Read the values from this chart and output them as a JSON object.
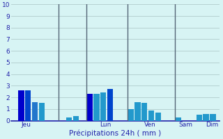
{
  "title": "Précipitations 24h ( mm )",
  "ylim": [
    0,
    10
  ],
  "yticks": [
    0,
    1,
    2,
    3,
    4,
    5,
    6,
    7,
    8,
    9,
    10
  ],
  "background_color": "#d7f4f4",
  "grid_color": "#b0cccc",
  "vline_color": "#556677",
  "xlabel_color": "#2222aa",
  "bar_positions": [
    2,
    3,
    4,
    5,
    9,
    10,
    12,
    13,
    14,
    15,
    18,
    19,
    20,
    21,
    22,
    25,
    28,
    29,
    30
  ],
  "bar_heights": [
    2.6,
    2.6,
    1.6,
    1.5,
    0.3,
    0.4,
    2.3,
    2.3,
    2.4,
    2.7,
    1.0,
    1.6,
    1.5,
    0.9,
    0.7,
    0.3,
    0.5,
    0.6,
    0.6
  ],
  "bar_colors": [
    "#0000cc",
    "#0044cc",
    "#2277cc",
    "#2299cc",
    "#2299cc",
    "#2299cc",
    "#0000cc",
    "#2299cc",
    "#2299cc",
    "#0044cc",
    "#2299cc",
    "#2299cc",
    "#2299cc",
    "#2299cc",
    "#2299cc",
    "#2299cc",
    "#2299cc",
    "#2299cc",
    "#2299cc"
  ],
  "vline_positions": [
    7.5,
    11.5,
    17.5,
    24.5
  ],
  "day_labels": [
    "Jeu",
    "Lun",
    "Ven",
    "Sam",
    "Dim"
  ],
  "day_x": [
    2.0,
    13.5,
    20.0,
    25.0,
    29.0
  ],
  "xlim": [
    0.5,
    31
  ],
  "bar_width": 0.85
}
